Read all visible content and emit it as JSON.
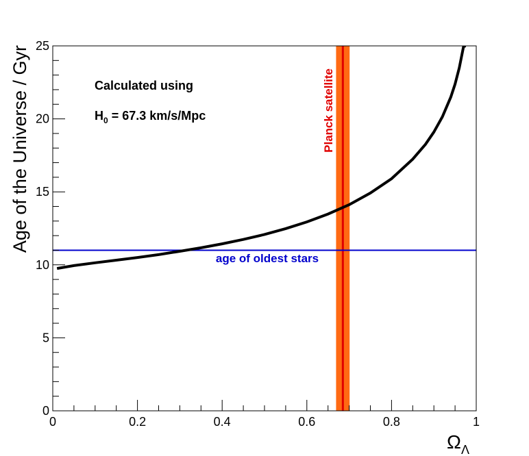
{
  "chart_data": {
    "type": "line",
    "ylabel": "Age of the Universe / Gyr",
    "xlabel": {
      "main": "Ω",
      "sub": "Λ"
    },
    "xlim": [
      0,
      1
    ],
    "ylim": [
      0,
      25
    ],
    "x_ticks": [
      0,
      0.2,
      0.4,
      0.6,
      0.8,
      1
    ],
    "x_tick_labels": [
      "0",
      "0.2",
      "0.4",
      "0.6",
      "0.8",
      "1"
    ],
    "y_ticks": [
      0,
      5,
      10,
      15,
      20,
      25
    ],
    "y_tick_labels": [
      "0",
      "5",
      "10",
      "15",
      "20",
      "25"
    ],
    "grid": false,
    "annotation": {
      "line1": "Calculated using",
      "line2_prefix": "H",
      "line2_sub": "0",
      "line2_suffix": " = 67.3 km/s/Mpc"
    },
    "oldest_stars": {
      "label": "age of oldest stars",
      "value": 11,
      "color": "#0000cc"
    },
    "planck": {
      "label": "Planck satellite",
      "center": 0.685,
      "low": 0.669,
      "high": 0.701,
      "band_color": "#ff6a13",
      "line_color": "#e00000"
    },
    "curve": {
      "name": "",
      "color": "#000000",
      "x": [
        0.01,
        0.05,
        0.1,
        0.15,
        0.2,
        0.25,
        0.3,
        0.35,
        0.4,
        0.45,
        0.5,
        0.55,
        0.6,
        0.65,
        0.7,
        0.75,
        0.8,
        0.85,
        0.88,
        0.9,
        0.92,
        0.94,
        0.95,
        0.96,
        0.97,
        0.975
      ],
      "y": [
        9.75,
        9.95,
        10.14,
        10.32,
        10.5,
        10.7,
        10.93,
        11.17,
        11.44,
        11.74,
        12.08,
        12.48,
        12.94,
        13.48,
        14.12,
        14.92,
        15.9,
        17.24,
        18.25,
        19.1,
        20.14,
        21.5,
        22.38,
        23.5,
        24.95,
        25.0
      ]
    }
  }
}
